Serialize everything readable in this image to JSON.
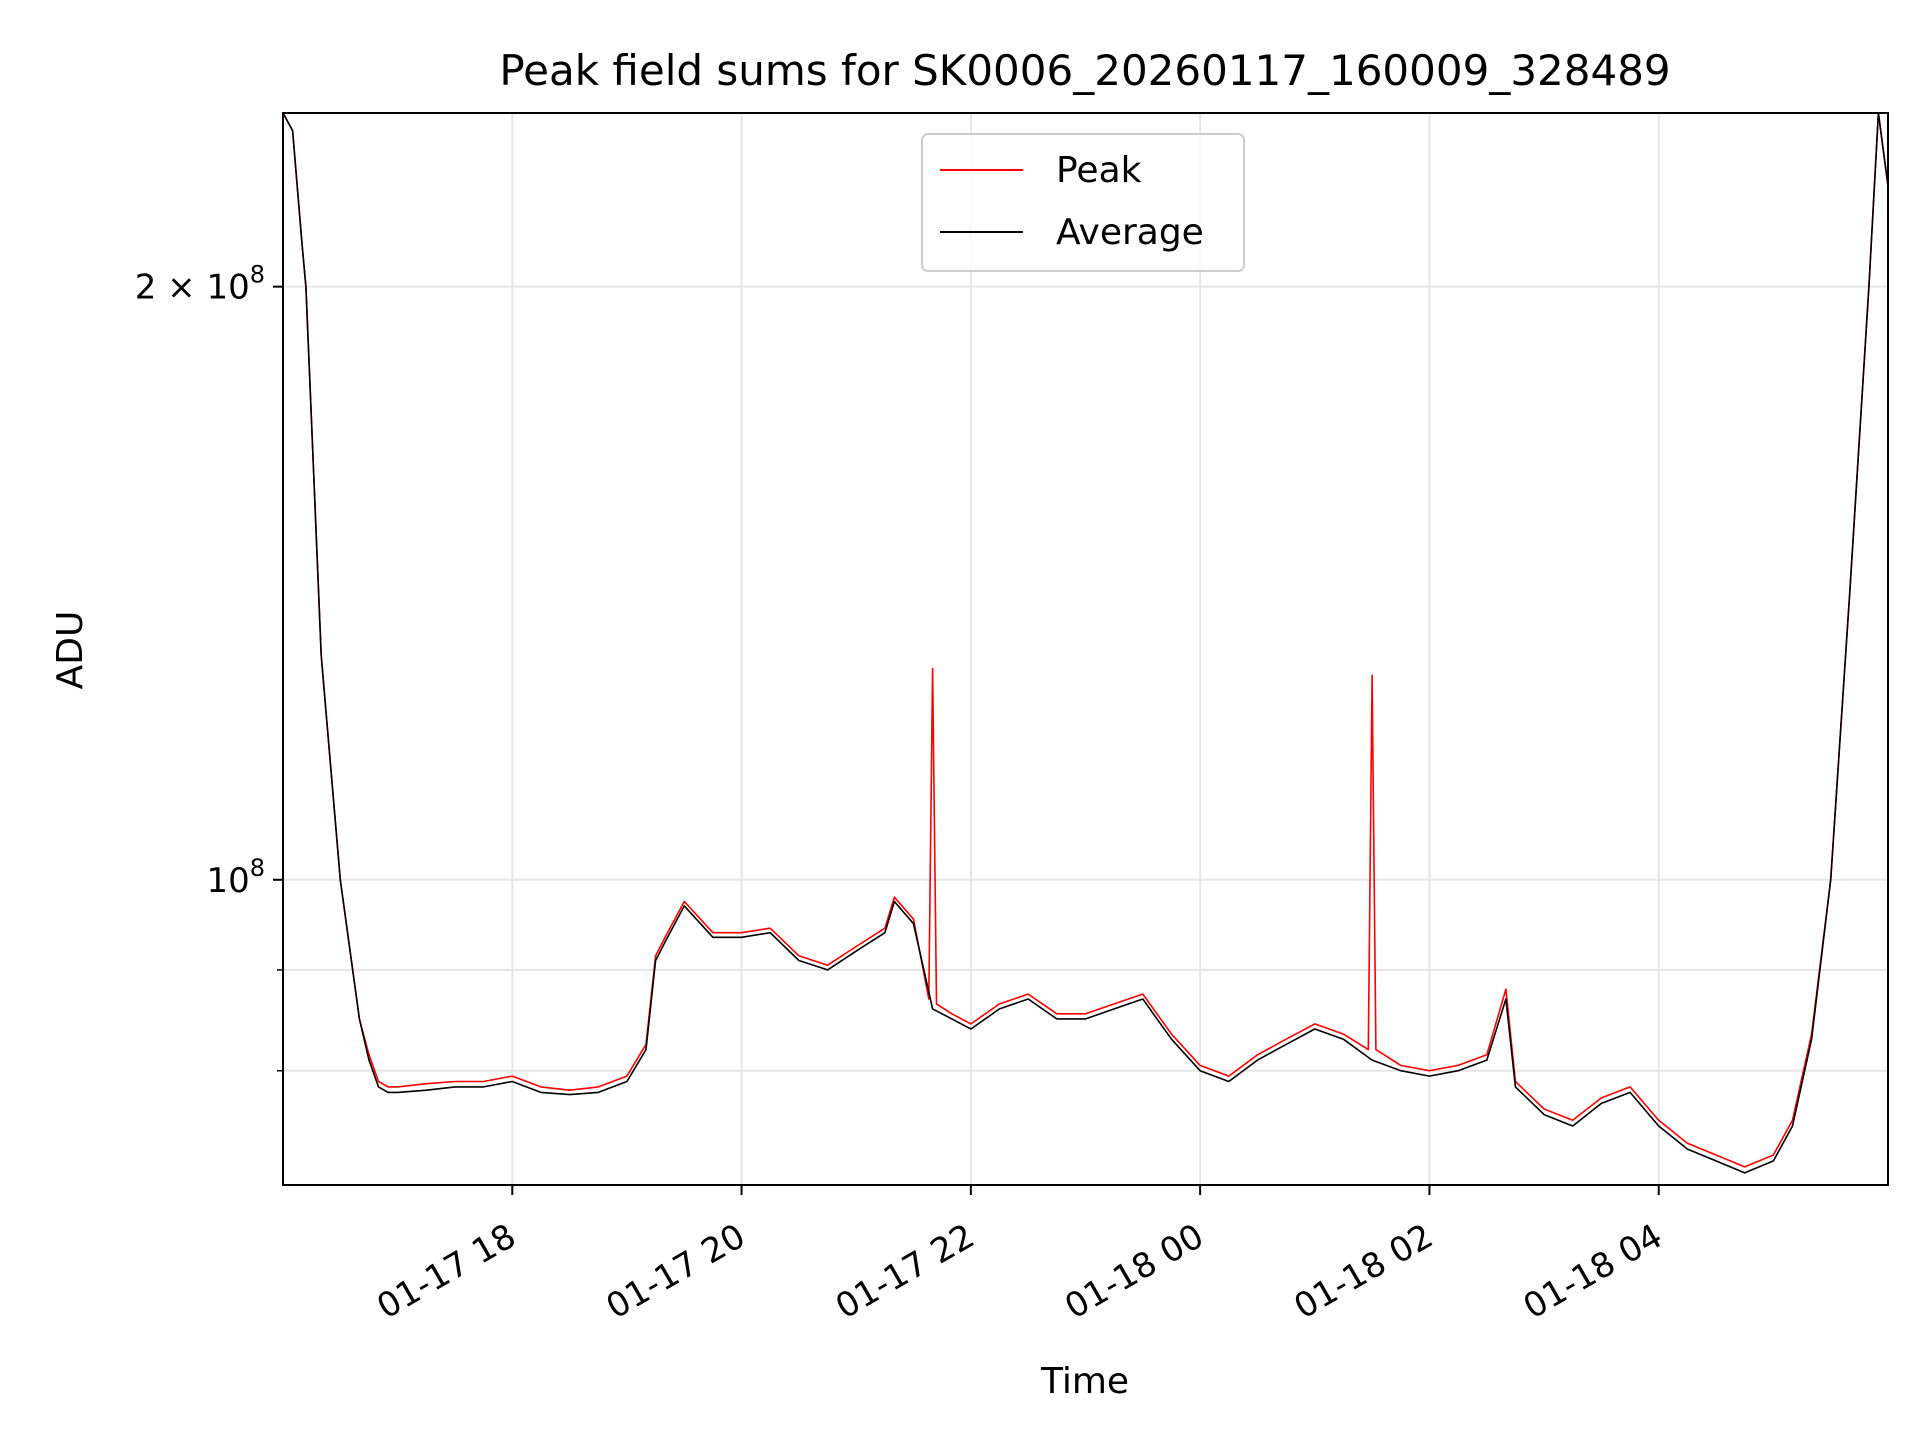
{
  "chart_data": {
    "type": "line",
    "title": "Peak field sums for SK0006_20260117_160009_328489",
    "xlabel": "Time",
    "ylabel": "ADU",
    "y_scale": "log",
    "ylim": [
      70000000,
      245000000
    ],
    "xlim": [
      "2026-01-17 16:00",
      "2026-01-18 06:00"
    ],
    "x_ticks": [
      "2026-01-17 18:00",
      "2026-01-17 20:00",
      "2026-01-17 22:00",
      "2026-01-18 00:00",
      "2026-01-18 02:00",
      "2026-01-18 04:00"
    ],
    "x_tick_labels": [
      "01-17 18",
      "01-17 20",
      "01-17 22",
      "01-18 00",
      "01-18 02",
      "01-18 04"
    ],
    "y_major_ticks": [
      100000000,
      200000000
    ],
    "y_major_labels": [
      {
        "mantissa": "",
        "base": "10",
        "exp": "8"
      },
      {
        "mantissa": "2 × ",
        "base": "10",
        "exp": "8"
      }
    ],
    "y_minor_ticks": [
      80000000,
      90000000
    ],
    "grid": true,
    "legend_position": "top-center",
    "colors": {
      "Peak": "#ff0000",
      "Average": "#000000"
    },
    "series": [
      {
        "name": "Average",
        "x": [
          "2026-01-17 16:00",
          "2026-01-17 16:05",
          "2026-01-17 16:10",
          "2026-01-17 16:12",
          "2026-01-17 16:15",
          "2026-01-17 16:20",
          "2026-01-17 16:30",
          "2026-01-17 16:40",
          "2026-01-17 16:45",
          "2026-01-17 16:50",
          "2026-01-17 16:55",
          "2026-01-17 17:00",
          "2026-01-17 17:15",
          "2026-01-17 17:30",
          "2026-01-17 17:45",
          "2026-01-17 18:00",
          "2026-01-17 18:15",
          "2026-01-17 18:30",
          "2026-01-17 18:45",
          "2026-01-17 19:00",
          "2026-01-17 19:10",
          "2026-01-17 19:15",
          "2026-01-17 19:20",
          "2026-01-17 19:30",
          "2026-01-17 19:45",
          "2026-01-17 20:00",
          "2026-01-17 20:15",
          "2026-01-17 20:30",
          "2026-01-17 20:45",
          "2026-01-17 21:00",
          "2026-01-17 21:15",
          "2026-01-17 21:20",
          "2026-01-17 21:30",
          "2026-01-17 21:40",
          "2026-01-17 21:50",
          "2026-01-17 22:00",
          "2026-01-17 22:15",
          "2026-01-17 22:30",
          "2026-01-17 22:45",
          "2026-01-17 23:00",
          "2026-01-17 23:15",
          "2026-01-17 23:30",
          "2026-01-17 23:45",
          "2026-01-18 00:00",
          "2026-01-18 00:15",
          "2026-01-18 00:30",
          "2026-01-18 00:45",
          "2026-01-18 01:00",
          "2026-01-18 01:15",
          "2026-01-18 01:30",
          "2026-01-18 01:45",
          "2026-01-18 02:00",
          "2026-01-18 02:15",
          "2026-01-18 02:30",
          "2026-01-18 02:40",
          "2026-01-18 02:45",
          "2026-01-18 03:00",
          "2026-01-18 03:15",
          "2026-01-18 03:30",
          "2026-01-18 03:45",
          "2026-01-18 04:00",
          "2026-01-18 04:15",
          "2026-01-18 04:30",
          "2026-01-18 04:45",
          "2026-01-18 05:00",
          "2026-01-18 05:10",
          "2026-01-18 05:20",
          "2026-01-18 05:30",
          "2026-01-18 05:40",
          "2026-01-18 05:50",
          "2026-01-18 05:55",
          "2026-01-18 06:00"
        ],
        "y": [
          245000000,
          240000000,
          210000000,
          200000000,
          170000000,
          130000000,
          100000000,
          85000000,
          81000000,
          78500000,
          78000000,
          78000000,
          78200000,
          78500000,
          78500000,
          79000000,
          78000000,
          77800000,
          78000000,
          79000000,
          82000000,
          91000000,
          93000000,
          97000000,
          93500000,
          93500000,
          94000000,
          91000000,
          90000000,
          92000000,
          94000000,
          97500000,
          95000000,
          86000000,
          85000000,
          84000000,
          86000000,
          87000000,
          85000000,
          85000000,
          86000000,
          87000000,
          83000000,
          80000000,
          79000000,
          81000000,
          82500000,
          84000000,
          83000000,
          81000000,
          80000000,
          79500000,
          80000000,
          81000000,
          87000000,
          78500000,
          76000000,
          75000000,
          77000000,
          78000000,
          75000000,
          73000000,
          72000000,
          71000000,
          72000000,
          75000000,
          83000000,
          100000000,
          140000000,
          200000000,
          245000000,
          225000000
        ]
      },
      {
        "name": "Peak",
        "x": [
          "2026-01-17 16:00",
          "2026-01-17 16:05",
          "2026-01-17 16:10",
          "2026-01-17 16:12",
          "2026-01-17 16:15",
          "2026-01-17 16:20",
          "2026-01-17 16:30",
          "2026-01-17 16:40",
          "2026-01-17 16:45",
          "2026-01-17 16:50",
          "2026-01-17 16:55",
          "2026-01-17 17:00",
          "2026-01-17 17:15",
          "2026-01-17 17:30",
          "2026-01-17 17:45",
          "2026-01-17 18:00",
          "2026-01-17 18:15",
          "2026-01-17 18:30",
          "2026-01-17 18:45",
          "2026-01-17 19:00",
          "2026-01-17 19:10",
          "2026-01-17 19:15",
          "2026-01-17 19:20",
          "2026-01-17 19:30",
          "2026-01-17 19:45",
          "2026-01-17 20:00",
          "2026-01-17 20:15",
          "2026-01-17 20:30",
          "2026-01-17 20:45",
          "2026-01-17 21:00",
          "2026-01-17 21:15",
          "2026-01-17 21:20",
          "2026-01-17 21:30",
          "2026-01-17 21:38",
          "2026-01-17 21:40",
          "2026-01-17 21:42",
          "2026-01-17 21:50",
          "2026-01-17 22:00",
          "2026-01-17 22:15",
          "2026-01-17 22:30",
          "2026-01-17 22:45",
          "2026-01-17 23:00",
          "2026-01-17 23:15",
          "2026-01-17 23:30",
          "2026-01-17 23:45",
          "2026-01-18 00:00",
          "2026-01-18 00:15",
          "2026-01-18 00:30",
          "2026-01-18 00:45",
          "2026-01-18 01:00",
          "2026-01-18 01:15",
          "2026-01-18 01:28",
          "2026-01-18 01:30",
          "2026-01-18 01:32",
          "2026-01-18 01:45",
          "2026-01-18 02:00",
          "2026-01-18 02:15",
          "2026-01-18 02:30",
          "2026-01-18 02:40",
          "2026-01-18 02:45",
          "2026-01-18 03:00",
          "2026-01-18 03:15",
          "2026-01-18 03:30",
          "2026-01-18 03:45",
          "2026-01-18 04:00",
          "2026-01-18 04:15",
          "2026-01-18 04:30",
          "2026-01-18 04:45",
          "2026-01-18 05:00",
          "2026-01-18 05:10",
          "2026-01-18 05:20",
          "2026-01-18 05:30",
          "2026-01-18 05:40",
          "2026-01-18 05:50",
          "2026-01-18 05:55",
          "2026-01-18 06:00"
        ],
        "y": [
          245000000,
          240000000,
          210000000,
          200000000,
          170000000,
          130000000,
          100000000,
          85000000,
          81500000,
          79000000,
          78500000,
          78500000,
          78800000,
          79000000,
          79000000,
          79500000,
          78500000,
          78200000,
          78500000,
          79500000,
          82500000,
          91500000,
          93500000,
          97500000,
          94000000,
          94000000,
          94500000,
          91500000,
          90500000,
          92500000,
          94500000,
          98000000,
          95500000,
          87000000,
          128000000,
          86500000,
          85500000,
          84500000,
          86500000,
          87500000,
          85500000,
          85500000,
          86500000,
          87500000,
          83500000,
          80500000,
          79500000,
          81500000,
          83000000,
          84500000,
          83500000,
          82000000,
          127000000,
          82000000,
          80500000,
          80000000,
          80500000,
          81500000,
          88000000,
          79000000,
          76500000,
          75500000,
          77500000,
          78500000,
          75500000,
          73500000,
          72500000,
          71500000,
          72500000,
          75500000,
          83500000,
          100000000,
          140000000,
          200000000,
          245000000,
          225000000
        ]
      }
    ]
  }
}
